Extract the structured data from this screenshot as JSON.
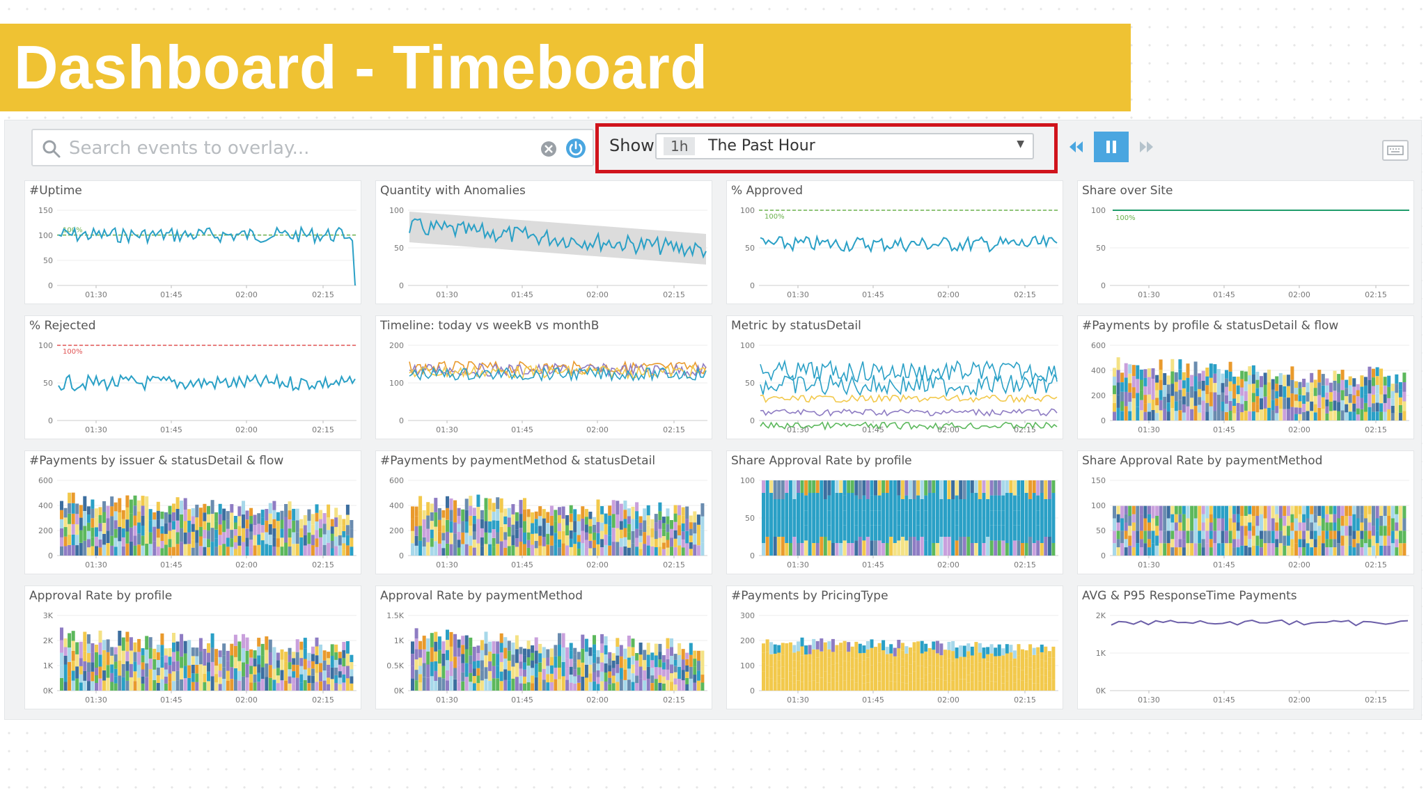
{
  "title": "Dashboard - Timeboard",
  "toolbar": {
    "search_placeholder": "Search events to overlay...",
    "show_label": "Show",
    "time_badge": "1h",
    "time_label": "The Past Hour"
  },
  "icons": {
    "search": "search-icon",
    "clear": "clear-icon",
    "power": "power-icon",
    "rewind": "rewind-icon",
    "pause": "pause-icon",
    "forward": "fast-forward-icon",
    "keyboard": "keyboard-icon"
  },
  "colors": {
    "banner": "#efc233",
    "highlight": "#d0141c",
    "accent": "#4aa6e0",
    "line": "#2aa0c6"
  },
  "x_ticks": [
    "01:30",
    "01:45",
    "02:00",
    "02:15"
  ],
  "widgets": [
    {
      "title": "#Uptime",
      "type": "line",
      "y_ticks": [
        "150",
        "100",
        "50",
        "0"
      ],
      "annotation": "100%"
    },
    {
      "title": "Quantity with Anomalies",
      "type": "anomaly",
      "y_ticks": [
        "100",
        "50",
        "0"
      ]
    },
    {
      "title": "% Approved",
      "type": "line",
      "y_ticks": [
        "100",
        "50",
        "0"
      ],
      "annotation": "100%"
    },
    {
      "title": "Share over Site",
      "type": "flat",
      "y_ticks": [
        "100",
        "50",
        "0"
      ],
      "annotation": "100%"
    },
    {
      "title": "% Rejected",
      "type": "line",
      "y_ticks": [
        "100",
        "50",
        "0"
      ],
      "annotation": "100%"
    },
    {
      "title": "Timeline: today vs weekB vs monthB",
      "type": "multiline",
      "y_ticks": [
        "200",
        "100",
        "0"
      ]
    },
    {
      "title": "Metric by statusDetail",
      "type": "multiline",
      "y_ticks": [
        "100",
        "50",
        "0"
      ]
    },
    {
      "title": "#Payments by profile & statusDetail & flow",
      "type": "stacked",
      "y_ticks": [
        "600",
        "400",
        "200",
        "0"
      ]
    },
    {
      "title": "#Payments by issuer & statusDetail & flow",
      "type": "stacked",
      "y_ticks": [
        "600",
        "400",
        "200",
        "0"
      ]
    },
    {
      "title": "#Payments by paymentMethod & statusDetail",
      "type": "stacked",
      "y_ticks": [
        "600",
        "400",
        "200",
        "0"
      ]
    },
    {
      "title": "Share Approval Rate by profile",
      "type": "stacked100",
      "y_ticks": [
        "100",
        "50",
        "0"
      ]
    },
    {
      "title": "Share Approval Rate by paymentMethod",
      "type": "stacked100",
      "y_ticks": [
        "150",
        "100",
        "50",
        "0"
      ]
    },
    {
      "title": "Approval Rate by profile",
      "type": "stacked",
      "y_ticks": [
        "3K",
        "2K",
        "1K",
        "0K"
      ]
    },
    {
      "title": "Approval Rate by paymentMethod",
      "type": "stacked",
      "y_ticks": [
        "1.5K",
        "1K",
        "0.5K",
        "0K"
      ]
    },
    {
      "title": "#Payments by PricingType",
      "type": "stacked",
      "y_ticks": [
        "300",
        "200",
        "100",
        "0"
      ]
    },
    {
      "title": "AVG & P95 ResponseTime Payments",
      "type": "line",
      "y_ticks": [
        "2K",
        "1K",
        "0K"
      ]
    }
  ]
}
